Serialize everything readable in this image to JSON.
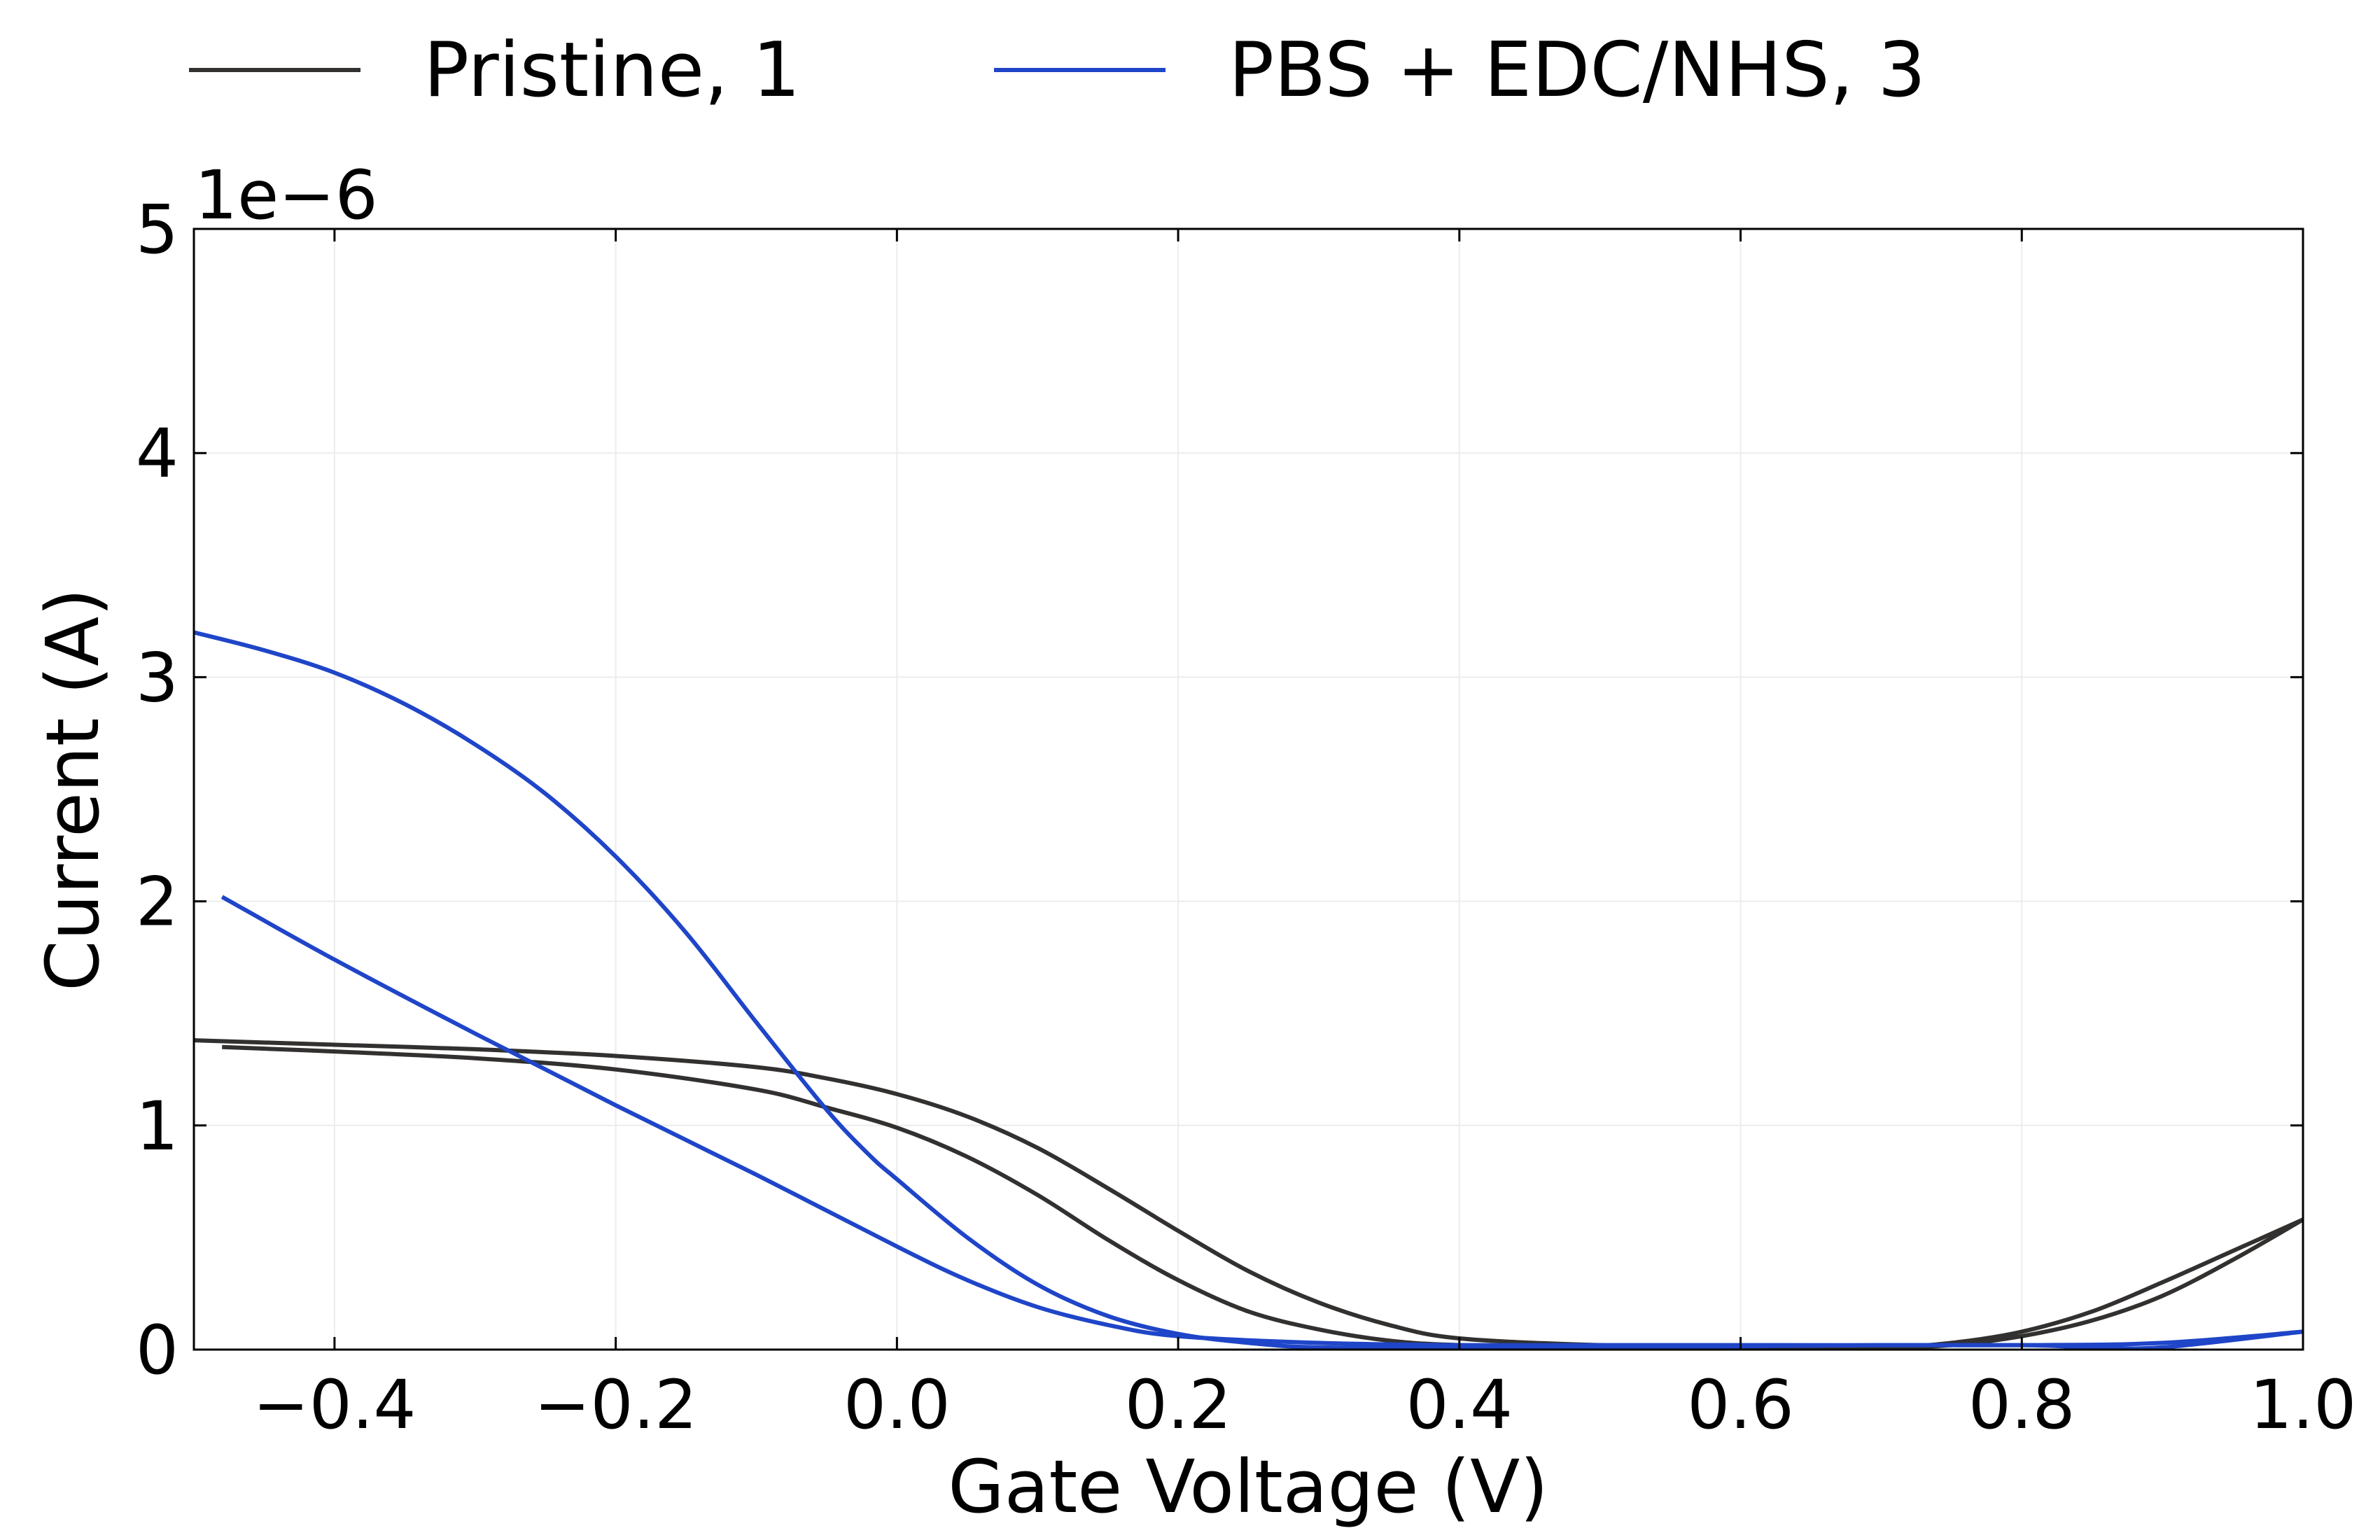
{
  "chart_data": {
    "type": "line",
    "title": "",
    "xlabel": "Gate Voltage (V)",
    "ylabel": "Current (A)",
    "y_offset_label": "1e−6",
    "y_scale_factor": 1e-06,
    "xlim": [
      -0.5,
      1.0
    ],
    "ylim": [
      0,
      5
    ],
    "x_ticks": [
      -0.4,
      -0.2,
      0.0,
      0.2,
      0.4,
      0.6,
      0.8,
      1.0
    ],
    "x_tick_labels": [
      "−0.4",
      "−0.2",
      "0.0",
      "0.2",
      "0.4",
      "0.6",
      "0.8",
      "1.0"
    ],
    "y_ticks": [
      0,
      1,
      2,
      3,
      4,
      5
    ],
    "y_tick_labels": [
      "0",
      "1",
      "2",
      "3",
      "4",
      "5"
    ],
    "grid": true,
    "legend_position": "top",
    "legend": [
      {
        "label": "Pristine, 1",
        "color": "#333130"
      },
      {
        "label": "PBS + EDC/NHS, 3",
        "color": "#1f45c8"
      }
    ],
    "series": [
      {
        "name": "Pristine, 1",
        "color": "#333130",
        "sweeps": [
          {
            "x": [
              -0.5,
              -0.4,
              -0.3,
              -0.2,
              -0.1,
              -0.05,
              0.0,
              0.05,
              0.1,
              0.15,
              0.2,
              0.25,
              0.3,
              0.35,
              0.4,
              0.5,
              0.6,
              0.7,
              0.75,
              0.8,
              0.85,
              0.9,
              0.95,
              1.0
            ],
            "y": [
              1.38,
              1.36,
              1.34,
              1.31,
              1.26,
              1.21,
              1.14,
              1.04,
              0.9,
              0.72,
              0.53,
              0.35,
              0.21,
              0.11,
              0.05,
              0.02,
              0.01,
              0.01,
              0.02,
              0.06,
              0.13,
              0.24,
              0.4,
              0.58
            ]
          },
          {
            "x": [
              1.0,
              0.95,
              0.9,
              0.85,
              0.8,
              0.75,
              0.7,
              0.6,
              0.5,
              0.4,
              0.35,
              0.3,
              0.25,
              0.2,
              0.15,
              0.1,
              0.05,
              0.0,
              -0.05,
              -0.1,
              -0.2,
              -0.3,
              -0.4,
              -0.48
            ],
            "y": [
              0.58,
              0.44,
              0.3,
              0.17,
              0.08,
              0.03,
              0.01,
              0.01,
              0.01,
              0.02,
              0.04,
              0.09,
              0.17,
              0.31,
              0.49,
              0.69,
              0.86,
              0.99,
              1.08,
              1.16,
              1.25,
              1.3,
              1.33,
              1.35
            ]
          }
        ]
      },
      {
        "name": "PBS + EDC/NHS, 3",
        "color": "#1f45c8",
        "sweeps": [
          {
            "x": [
              -0.5,
              -0.45,
              -0.4,
              -0.35,
              -0.3,
              -0.25,
              -0.2,
              -0.15,
              -0.1,
              -0.05,
              -0.02,
              0.0,
              0.05,
              0.1,
              0.15,
              0.2,
              0.25,
              0.3,
              0.4,
              0.5,
              0.7,
              0.8,
              0.85,
              0.9,
              1.0
            ],
            "y": [
              3.2,
              3.12,
              3.02,
              2.88,
              2.7,
              2.48,
              2.2,
              1.86,
              1.46,
              1.07,
              0.87,
              0.76,
              0.5,
              0.29,
              0.15,
              0.07,
              0.03,
              0.01,
              0.01,
              0.01,
              0.02,
              0.02,
              0.01,
              0.01,
              0.08
            ]
          },
          {
            "x": [
              1.0,
              0.9,
              0.8,
              0.6,
              0.5,
              0.4,
              0.3,
              0.2,
              0.15,
              0.1,
              0.05,
              0.0,
              -0.1,
              -0.2,
              -0.3,
              -0.4,
              -0.48
            ],
            "y": [
              0.08,
              0.03,
              0.02,
              0.02,
              0.02,
              0.02,
              0.03,
              0.06,
              0.11,
              0.19,
              0.31,
              0.46,
              0.78,
              1.09,
              1.41,
              1.74,
              2.02
            ]
          }
        ]
      }
    ]
  }
}
